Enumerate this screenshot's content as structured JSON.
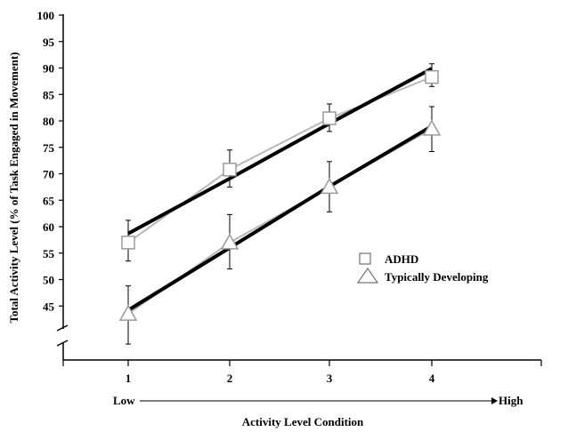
{
  "chart_data": {
    "type": "line",
    "ylabel": "Total Activity Level (% of Task Engaged in Movement)",
    "xlabel": "Activity Level Condition",
    "x": [
      1,
      2,
      3,
      4
    ],
    "x_tick_labels": [
      "1",
      "2",
      "3",
      "4"
    ],
    "y_tick_labels": [
      "100",
      "95",
      "90",
      "85",
      "80",
      "75",
      "70",
      "65",
      "60",
      "55",
      "50",
      "45"
    ],
    "y_ticks": [
      100,
      95,
      90,
      85,
      80,
      75,
      70,
      65,
      60,
      55,
      50,
      45
    ],
    "ylim": [
      38,
      100
    ],
    "y_axis_break": true,
    "low_label": "Low",
    "high_label": "High",
    "grid": false,
    "legend_position": "middle-right",
    "series": [
      {
        "name": "ADHD",
        "marker": "square",
        "values": [
          57,
          70.8,
          80.5,
          88.3
        ],
        "err_low": [
          53.5,
          67.5,
          78,
          86.5
        ],
        "err_high": [
          61.2,
          74.5,
          83.2,
          90.8
        ],
        "trend": [
          58.7,
          69.1,
          79.5,
          89.9
        ],
        "color": "#b8b8b8"
      },
      {
        "name": "Typically Developing",
        "marker": "triangle",
        "values": [
          43.5,
          57,
          67.5,
          78.5
        ],
        "err_low": [
          37.8,
          52,
          62.8,
          74.2
        ],
        "err_high": [
          48.8,
          62.3,
          72.3,
          82.7
        ],
        "trend": [
          44.2,
          56,
          67.6,
          79
        ],
        "color": "#b8b8b8"
      }
    ]
  }
}
